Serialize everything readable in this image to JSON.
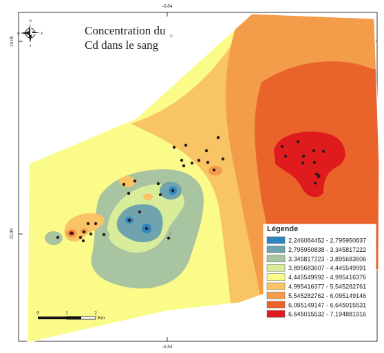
{
  "map": {
    "title_line1": "Concentration du",
    "title_line2": "Cd dans le sang",
    "coords": {
      "top_lon": "-6.84",
      "bottom_lon": "-6.84",
      "left_lat_upper": "34.06",
      "left_lat_lower": "33.99"
    },
    "compass_letters": {
      "n": "N",
      "s": "S",
      "e": "E",
      "w": "W"
    },
    "scale_bar": {
      "labels": [
        "0",
        "1",
        "2"
      ],
      "unit": "Km"
    }
  },
  "legend": {
    "title": "Légende",
    "items": [
      {
        "label": "2,246084452 - 2,795950837",
        "color": "#2e86c1"
      },
      {
        "label": "2,795950838 - 3,345817222",
        "color": "#6fa3ae"
      },
      {
        "label": "3,345817223 - 3,895683606",
        "color": "#a8c4a0"
      },
      {
        "label": "3,895683607 - 4,445549991",
        "color": "#d8ec9a"
      },
      {
        "label": "4,445549992 - 4,995416376",
        "color": "#fbfb8a"
      },
      {
        "label": "4,995416377 - 5,545282761",
        "color": "#f9c465"
      },
      {
        "label": "5,545282762 - 6,095149146",
        "color": "#f39c4a"
      },
      {
        "label": "6,095149147 - 6,645015531",
        "color": "#e9632b"
      },
      {
        "label": "6,645015532 - 7,194881916",
        "color": "#e01b1e"
      }
    ]
  }
}
